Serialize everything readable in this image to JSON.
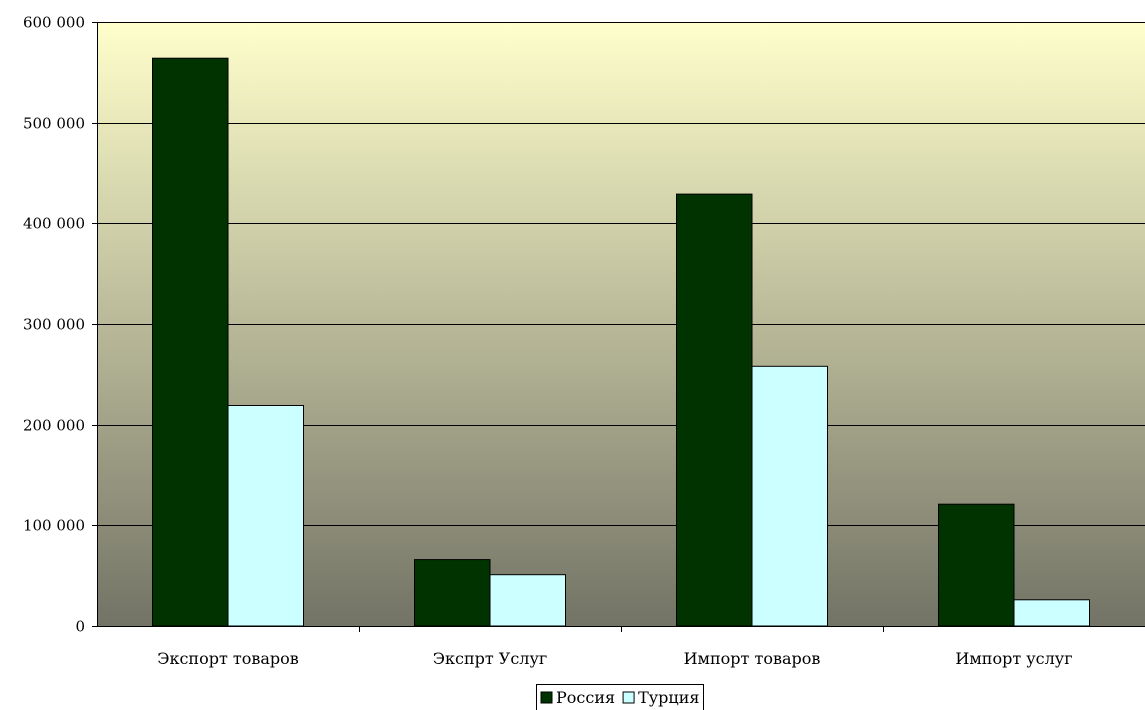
{
  "chart_data": {
    "type": "bar",
    "title": "",
    "xlabel": "",
    "ylabel": "",
    "categories": [
      "Экспорт товаров",
      "Экспрт Услуг",
      "Импорт товаров",
      "Импорт услуг"
    ],
    "series": [
      {
        "name": "Россия",
        "color": "#003300",
        "values": [
          564000,
          66000,
          429000,
          121000
        ]
      },
      {
        "name": "Турция",
        "color": "#ccffff",
        "values": [
          219000,
          51000,
          258000,
          26000
        ]
      }
    ],
    "ylim": [
      0,
      600000
    ],
    "yticks": [
      0,
      100000,
      200000,
      300000,
      400000,
      500000,
      600000
    ],
    "ytick_labels": [
      "0",
      "100 000",
      "200 000",
      "300 000",
      "400 000",
      "500 000",
      "600 000"
    ],
    "grid": true,
    "legend_position": "bottom-center",
    "plot_background": {
      "top": "#ffffcc",
      "bottom": "#737366"
    }
  }
}
